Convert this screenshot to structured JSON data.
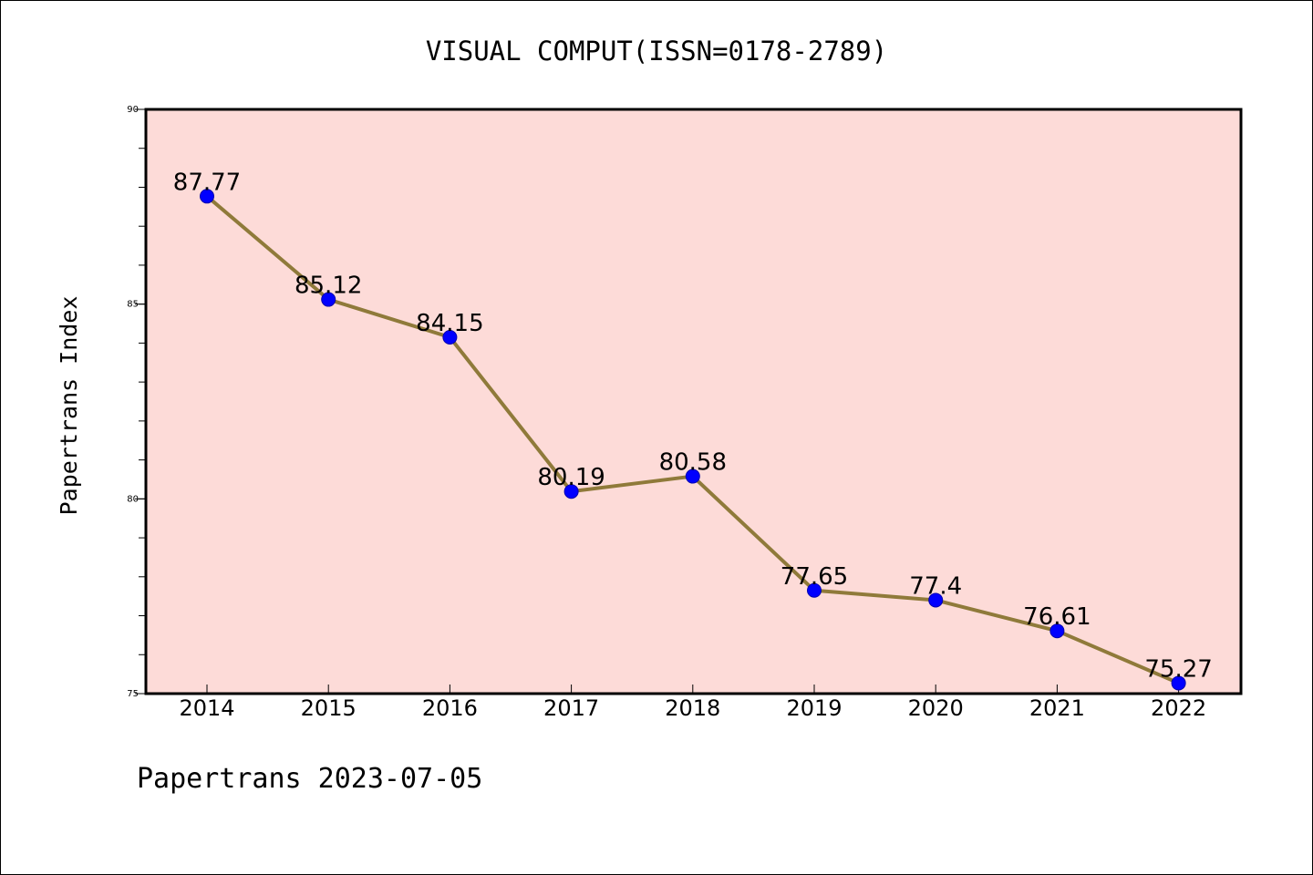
{
  "chart_data": {
    "type": "line",
    "title": "VISUAL COMPUT(ISSN=0178-2789)",
    "ylabel": "Papertrans Index",
    "xlabel": "",
    "footer": "Papertrans 2023-07-05",
    "categories": [
      "2014",
      "2015",
      "2016",
      "2017",
      "2018",
      "2019",
      "2020",
      "2021",
      "2022"
    ],
    "values": [
      87.77,
      85.12,
      84.15,
      80.19,
      80.58,
      77.65,
      77.4,
      76.61,
      75.27
    ],
    "data_labels": [
      "87.77",
      "85.12",
      "84.15",
      "80.19",
      "80.58",
      "77.65",
      "77.4",
      "76.61",
      "75.27"
    ],
    "ylim": [
      75,
      90
    ],
    "yticks": [
      75,
      80,
      85,
      90
    ],
    "ytick_labels": [
      "75",
      "80",
      "85",
      "90"
    ],
    "yminor_step": 1,
    "grid": false,
    "legend": "none",
    "colors": {
      "plot_background": "#fddbd8",
      "line": "#8f7a3a",
      "marker": "#0000ff",
      "marker_edge": "#0000b0",
      "axes": "#000000"
    }
  }
}
